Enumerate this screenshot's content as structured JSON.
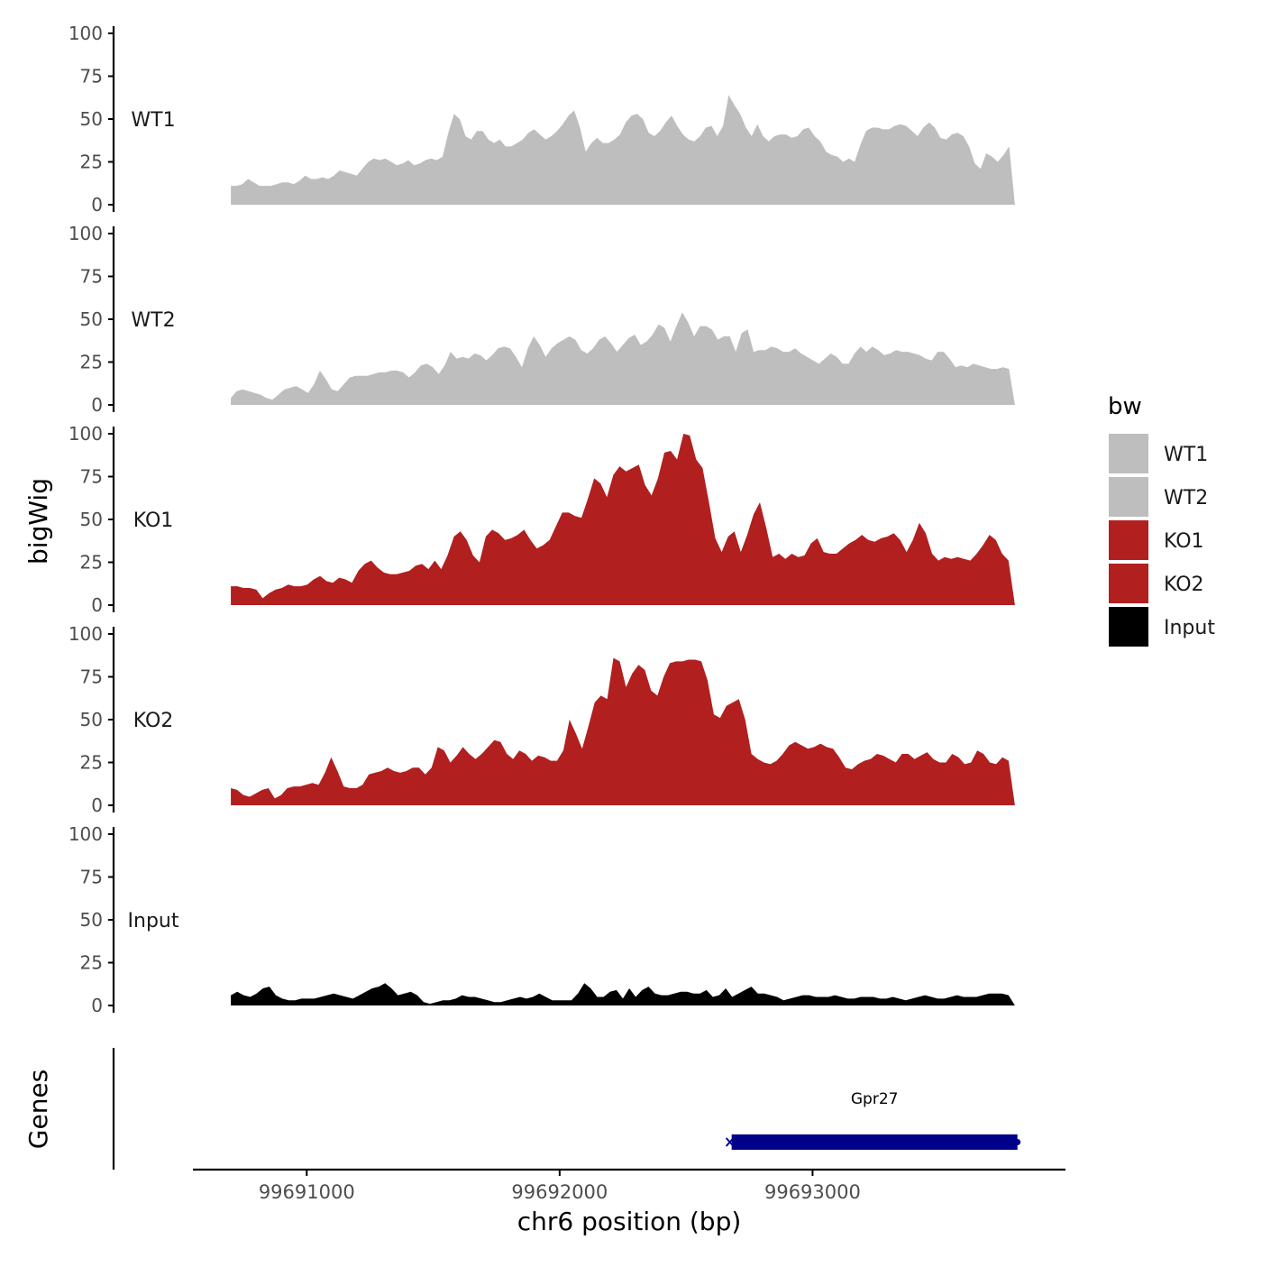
{
  "colors": {
    "wt": "#bebebe",
    "ko": "#b21f1f",
    "input": "#000000",
    "gene": "#00008b",
    "axis": "#000000",
    "tick_text": "#4d4d4d"
  },
  "chart_data": {
    "type": "area",
    "ylabel": "bigWig",
    "xlabel": "chr6 position (bp)",
    "ylim": [
      0,
      100
    ],
    "xlim": [
      99690550,
      99694000
    ],
    "y_ticks": [
      "0",
      "25",
      "50",
      "75",
      "100"
    ],
    "x_ticks": [
      {
        "value": 99691000,
        "label": "99691000"
      },
      {
        "value": 99692000,
        "label": "99692000"
      },
      {
        "value": 99693000,
        "label": "99693000"
      }
    ],
    "legend": {
      "title": "bw",
      "position": "right",
      "entries": [
        {
          "label": "WT1",
          "color": "#bebebe"
        },
        {
          "label": "WT2",
          "color": "#bebebe"
        },
        {
          "label": "KO1",
          "color": "#b21f1f"
        },
        {
          "label": "KO2",
          "color": "#b21f1f"
        },
        {
          "label": "Input",
          "color": "#000000"
        }
      ]
    },
    "x_start": 99690700,
    "x_end": 99693800,
    "series": [
      {
        "name": "WT1",
        "color": "#bebebe",
        "values": [
          11,
          11,
          12,
          15,
          13,
          11,
          11,
          11,
          12,
          13,
          13,
          12,
          14,
          17,
          15,
          15,
          16,
          15,
          17,
          20,
          19,
          18,
          17,
          21,
          25,
          27,
          26,
          27,
          25,
          23,
          24,
          26,
          23,
          24,
          26,
          27,
          26,
          28,
          42,
          53,
          50,
          40,
          38,
          43,
          43,
          38,
          36,
          38,
          34,
          34,
          36,
          38,
          42,
          44,
          41,
          38,
          40,
          43,
          47,
          52,
          55,
          45,
          31,
          36,
          39,
          36,
          36,
          38,
          41,
          48,
          52,
          53,
          50,
          42,
          40,
          43,
          48,
          52,
          46,
          41,
          38,
          37,
          40,
          45,
          46,
          40,
          46,
          64,
          58,
          53,
          45,
          40,
          47,
          40,
          37,
          40,
          41,
          41,
          39,
          40,
          44,
          45,
          40,
          37,
          31,
          29,
          28,
          25,
          27,
          25,
          35,
          43,
          45,
          45,
          44,
          44,
          46,
          47,
          46,
          43,
          40,
          45,
          48,
          45,
          39,
          38,
          41,
          42,
          40,
          34,
          24,
          21,
          30,
          28,
          25,
          29,
          34,
          0
        ]
      },
      {
        "name": "WT2",
        "color": "#bebebe",
        "values": [
          4,
          8,
          9,
          8,
          7,
          6,
          4,
          3,
          6,
          9,
          10,
          11,
          9,
          7,
          12,
          20,
          15,
          9,
          8,
          12,
          16,
          17,
          17,
          17,
          18,
          19,
          19,
          20,
          20,
          19,
          16,
          19,
          23,
          24,
          22,
          18,
          23,
          31,
          27,
          28,
          27,
          30,
          29,
          26,
          29,
          33,
          34,
          33,
          28,
          22,
          33,
          40,
          35,
          28,
          33,
          36,
          38,
          40,
          38,
          32,
          30,
          33,
          38,
          40,
          36,
          31,
          35,
          39,
          41,
          35,
          37,
          41,
          47,
          45,
          37,
          46,
          54,
          48,
          40,
          46,
          46,
          44,
          38,
          40,
          40,
          31,
          42,
          44,
          31,
          32,
          32,
          34,
          33,
          31,
          31,
          33,
          30,
          28,
          26,
          24,
          27,
          30,
          28,
          24,
          24,
          30,
          34,
          31,
          34,
          32,
          29,
          30,
          32,
          31,
          31,
          30,
          29,
          27,
          26,
          31,
          31,
          27,
          22,
          23,
          22,
          24,
          23,
          22,
          21,
          21,
          22,
          21,
          0
        ]
      },
      {
        "name": "KO1",
        "color": "#b21f1f",
        "values": [
          11,
          11,
          10,
          10,
          9,
          4,
          7,
          9,
          10,
          12,
          11,
          11,
          12,
          15,
          17,
          14,
          13,
          16,
          15,
          13,
          20,
          24,
          26,
          22,
          19,
          18,
          18,
          19,
          20,
          23,
          24,
          21,
          26,
          21,
          29,
          40,
          43,
          38,
          29,
          25,
          40,
          44,
          42,
          38,
          39,
          41,
          44,
          38,
          33,
          35,
          38,
          46,
          54,
          54,
          52,
          51,
          62,
          74,
          71,
          63,
          76,
          81,
          78,
          80,
          82,
          70,
          64,
          74,
          89,
          90,
          85,
          100,
          99,
          85,
          80,
          60,
          39,
          31,
          40,
          43,
          31,
          41,
          53,
          60,
          45,
          28,
          30,
          27,
          30,
          28,
          29,
          36,
          39,
          31,
          30,
          30,
          33,
          36,
          38,
          41,
          38,
          37,
          39,
          40,
          42,
          38,
          31,
          38,
          48,
          42,
          30,
          26,
          28,
          27,
          28,
          27,
          26,
          30,
          35,
          41,
          38,
          30,
          26,
          0
        ]
      },
      {
        "name": "KO2",
        "color": "#b21f1f",
        "values": [
          10,
          9,
          6,
          5,
          7,
          9,
          10,
          4,
          6,
          10,
          11,
          11,
          12,
          13,
          12,
          19,
          28,
          20,
          11,
          10,
          10,
          12,
          18,
          19,
          20,
          22,
          20,
          19,
          20,
          22,
          22,
          18,
          22,
          34,
          32,
          25,
          29,
          34,
          30,
          27,
          30,
          34,
          38,
          37,
          30,
          27,
          32,
          30,
          26,
          29,
          28,
          26,
          26,
          32,
          50,
          42,
          33,
          46,
          60,
          64,
          62,
          86,
          84,
          69,
          77,
          82,
          79,
          67,
          64,
          75,
          83,
          84,
          84,
          85,
          85,
          84,
          73,
          53,
          51,
          58,
          60,
          62,
          50,
          30,
          27,
          25,
          24,
          26,
          30,
          35,
          37,
          35,
          33,
          34,
          36,
          34,
          33,
          28,
          22,
          21,
          24,
          26,
          27,
          30,
          29,
          27,
          25,
          30,
          30,
          27,
          29,
          31,
          27,
          25,
          25,
          30,
          28,
          24,
          25,
          32,
          30,
          25,
          24,
          28,
          26,
          0
        ]
      },
      {
        "name": "Input",
        "color": "#000000",
        "values": [
          6,
          8,
          6,
          5,
          7,
          10,
          11,
          6,
          4,
          3,
          3,
          4,
          4,
          4,
          5,
          6,
          7,
          6,
          5,
          4,
          6,
          8,
          10,
          11,
          13,
          10,
          6,
          7,
          8,
          6,
          2,
          1,
          2,
          3,
          3,
          4,
          6,
          5,
          5,
          4,
          3,
          2,
          2,
          3,
          4,
          5,
          4,
          5,
          7,
          5,
          3,
          3,
          3,
          3,
          7,
          13,
          10,
          5,
          5,
          8,
          9,
          4,
          10,
          5,
          9,
          11,
          7,
          6,
          6,
          7,
          8,
          8,
          7,
          7,
          9,
          5,
          6,
          10,
          5,
          7,
          9,
          11,
          7,
          7,
          6,
          5,
          3,
          4,
          5,
          6,
          6,
          5,
          5,
          5,
          6,
          5,
          4,
          4,
          5,
          5,
          5,
          4,
          4,
          5,
          4,
          3,
          4,
          5,
          6,
          5,
          4,
          4,
          5,
          6,
          5,
          5,
          5,
          6,
          7,
          7,
          7,
          6,
          0
        ]
      }
    ],
    "genes": [
      {
        "name": "Gpr27",
        "start": 99692680,
        "end": 99693810,
        "strand": "+"
      }
    ],
    "genes_panel_label": "Genes"
  }
}
